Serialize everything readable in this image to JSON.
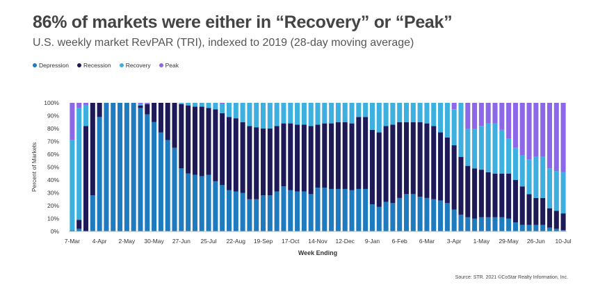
{
  "title": "86% of markets were either in “Recovery” or “Peak”",
  "subtitle": "U.S. weekly market RevPAR (TRI), indexed to 2019 (28-day moving average)",
  "source": "Source: STR. 2021 ©CoStar Realty Information, Inc.",
  "chart_data": {
    "type": "bar",
    "stacked": true,
    "xlabel": "Week Ending",
    "ylabel": "Percent of Markets",
    "ylim": [
      0,
      100
    ],
    "yticks": [
      "0%",
      "10%",
      "20%",
      "30%",
      "40%",
      "50%",
      "60%",
      "70%",
      "80%",
      "90%",
      "100%"
    ],
    "x_tick_labels": [
      {
        "index": 0,
        "label": "7-Mar"
      },
      {
        "index": 4,
        "label": "4-Apr"
      },
      {
        "index": 8,
        "label": "2-May"
      },
      {
        "index": 12,
        "label": "30-May"
      },
      {
        "index": 16,
        "label": "27-Jun"
      },
      {
        "index": 20,
        "label": "25-Jul"
      },
      {
        "index": 24,
        "label": "22-Aug"
      },
      {
        "index": 28,
        "label": "19-Sep"
      },
      {
        "index": 32,
        "label": "17-Oct"
      },
      {
        "index": 36,
        "label": "14-Nov"
      },
      {
        "index": 40,
        "label": "12-Dec"
      },
      {
        "index": 44,
        "label": "9-Jan"
      },
      {
        "index": 48,
        "label": "6-Feb"
      },
      {
        "index": 52,
        "label": "6-Mar"
      },
      {
        "index": 56,
        "label": "3-Apr"
      },
      {
        "index": 60,
        "label": "1-May"
      },
      {
        "index": 64,
        "label": "29-May"
      },
      {
        "index": 68,
        "label": "26-Jun"
      },
      {
        "index": 72,
        "label": "10-Jul"
      }
    ],
    "legend_position": "top-left",
    "series": [
      {
        "name": "Depression",
        "color": "#1f7bbf",
        "values": [
          1,
          2,
          0,
          28,
          89,
          100,
          100,
          100,
          100,
          100,
          96,
          91,
          85,
          77,
          71,
          65,
          49,
          45,
          44,
          43,
          44,
          39,
          36,
          32,
          31,
          30,
          25,
          25,
          28,
          28,
          31,
          35,
          32,
          31,
          31,
          29,
          34,
          34,
          33,
          33,
          33,
          32,
          33,
          33,
          21,
          19,
          23,
          22,
          26,
          29,
          29,
          27,
          26,
          25,
          24,
          22,
          17,
          13,
          11,
          10,
          11,
          11,
          11,
          11,
          10,
          7,
          5,
          5,
          5,
          5,
          3,
          2,
          1
        ]
      },
      {
        "name": "Recession",
        "color": "#1e1a57",
        "values": [
          0,
          7,
          82,
          72,
          11,
          0,
          0,
          0,
          0,
          0,
          2,
          8,
          15,
          23,
          29,
          35,
          50,
          53,
          53,
          54,
          52,
          56,
          56,
          57,
          57,
          55,
          57,
          56,
          52,
          52,
          51,
          49,
          52,
          52,
          52,
          53,
          49,
          50,
          51,
          52,
          52,
          52,
          56,
          56,
          58,
          58,
          59,
          61,
          59,
          56,
          56,
          58,
          58,
          57,
          53,
          51,
          50,
          45,
          40,
          39,
          37,
          35,
          34,
          34,
          35,
          33,
          30,
          24,
          21,
          21,
          15,
          14,
          13
        ]
      },
      {
        "name": "Recovery",
        "color": "#3db0df",
        "values": [
          70,
          87,
          16,
          0,
          0,
          0,
          0,
          0,
          0,
          0,
          1,
          0,
          0,
          0,
          0,
          0,
          1,
          2,
          3,
          3,
          4,
          5,
          7,
          11,
          12,
          15,
          18,
          19,
          20,
          20,
          18,
          16,
          16,
          17,
          17,
          18,
          17,
          16,
          16,
          15,
          15,
          16,
          11,
          11,
          21,
          23,
          18,
          17,
          15,
          15,
          15,
          15,
          16,
          18,
          23,
          27,
          28,
          42,
          29,
          31,
          34,
          38,
          39,
          34,
          27,
          25,
          24,
          27,
          32,
          32,
          31,
          31,
          32
        ]
      },
      {
        "name": "Peak",
        "color": "#8c68e8",
        "values": [
          29,
          4,
          2,
          0,
          0,
          0,
          0,
          0,
          0,
          0,
          1,
          1,
          0,
          0,
          0,
          0,
          0,
          0,
          0,
          0,
          0,
          0,
          1,
          0,
          0,
          0,
          0,
          0,
          0,
          0,
          0,
          0,
          0,
          0,
          0,
          0,
          0,
          0,
          0,
          0,
          0,
          0,
          0,
          0,
          0,
          0,
          0,
          0,
          0,
          0,
          0,
          0,
          0,
          0,
          0,
          0,
          5,
          0,
          20,
          20,
          18,
          16,
          16,
          21,
          28,
          35,
          41,
          44,
          42,
          42,
          51,
          53,
          54
        ]
      }
    ]
  }
}
